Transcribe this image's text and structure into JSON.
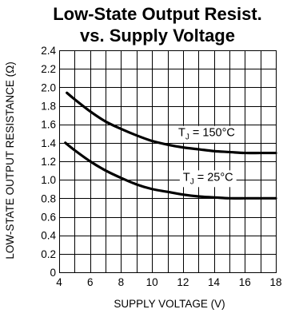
{
  "chart_data": {
    "type": "line",
    "title": "Low-State Output Resist.",
    "subtitle": "vs. Supply Voltage",
    "xlabel": "SUPPLY VOLTAGE (V)",
    "ylabel": "LOW-STATE OUTPUT RESISTANCE (Ω)",
    "xlim": [
      4,
      18
    ],
    "ylim": [
      0,
      2.4
    ],
    "x_ticks": [
      4,
      6,
      8,
      10,
      12,
      14,
      16,
      18
    ],
    "x_tick_labels": [
      "4",
      "6",
      "8",
      "10",
      "12",
      "14",
      "16",
      "18"
    ],
    "y_ticks": [
      0,
      0.2,
      0.4,
      0.6,
      0.8,
      1.0,
      1.2,
      1.4,
      1.6,
      1.8,
      2.0,
      2.2,
      2.4
    ],
    "y_tick_labels": [
      "0",
      "0.2",
      "0.4",
      "0.6",
      "0.8",
      "1.0",
      "1.2",
      "1.4",
      "1.6",
      "1.8",
      "2.0",
      "2.2",
      "2.4"
    ],
    "x_minor_step": 1,
    "grid": true,
    "legend": "none",
    "series": [
      {
        "name_main": "T",
        "name_sub": "J",
        "name_rest": " = 150°C",
        "label_at": [
          11.7,
          1.47
        ],
        "x": [
          4.5,
          5,
          6,
          7,
          8,
          9,
          10,
          11,
          12,
          13,
          14,
          15,
          16,
          17,
          18
        ],
        "y": [
          1.94,
          1.87,
          1.74,
          1.63,
          1.55,
          1.48,
          1.42,
          1.38,
          1.35,
          1.33,
          1.31,
          1.3,
          1.29,
          1.29,
          1.29
        ]
      },
      {
        "name_main": "T",
        "name_sub": "J",
        "name_rest": " = 25°C",
        "label_at": [
          12.0,
          0.99
        ],
        "x": [
          4.4,
          5,
          6,
          7,
          8,
          9,
          10,
          11,
          12,
          13,
          14,
          15,
          16,
          17,
          18
        ],
        "y": [
          1.4,
          1.32,
          1.2,
          1.1,
          1.02,
          0.95,
          0.9,
          0.87,
          0.84,
          0.82,
          0.81,
          0.8,
          0.8,
          0.8,
          0.8
        ]
      }
    ]
  }
}
